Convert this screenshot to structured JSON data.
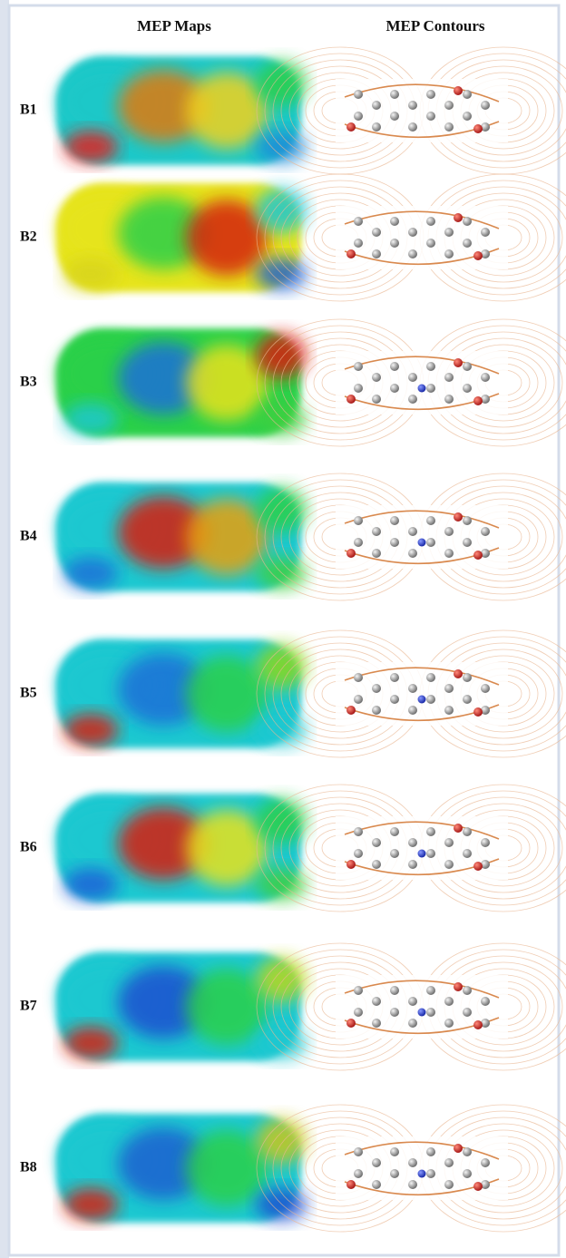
{
  "header": {
    "left": "MEP Maps",
    "right": "MEP Contours"
  },
  "rows": [
    {
      "label": "B1"
    },
    {
      "label": "B2"
    },
    {
      "label": "B3"
    },
    {
      "label": "B4"
    },
    {
      "label": "B5"
    },
    {
      "label": "B6"
    },
    {
      "label": "B7"
    },
    {
      "label": "B8"
    }
  ]
}
